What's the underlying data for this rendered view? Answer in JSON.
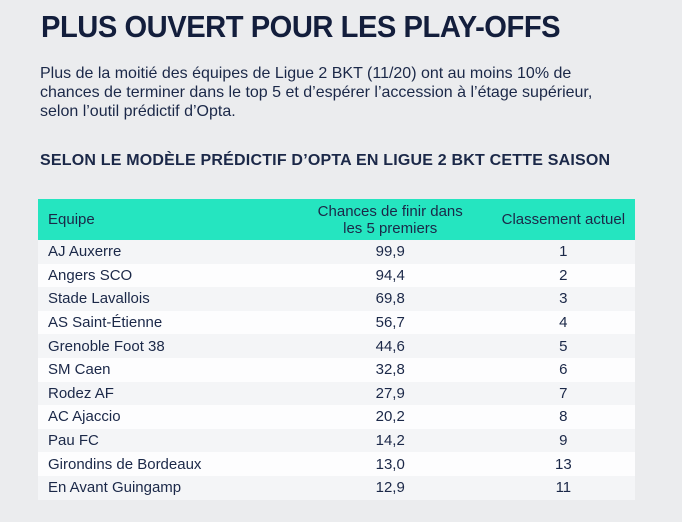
{
  "page": {
    "title": "PLUS OUVERT POUR LES PLAY-OFFS",
    "intro_lines": [
      "Plus de la moitié des équipes de Ligue 2 BKT (11/20) ont au moins 10% de",
      "chances de terminer dans le top 5 et d’espérer l’accession à l’étage supérieur,",
      "selon l’outil prédictif d’Opta."
    ],
    "subtitle": "SELON LE MODÈLE PRÉDICTIF D’OPTA EN LIGUE 2 BKT CETTE SAISON"
  },
  "colors": {
    "background": "#ebecee",
    "navy_text": "#1b2848",
    "title_navy": "#131e3c",
    "header_teal": "#25e5c0",
    "row_odd": "#f4f5f7",
    "row_even": "#fdfdfe"
  },
  "chart_data": {
    "type": "table",
    "title": "SELON LE MODÈLE PRÉDICTIF D’OPTA EN LIGUE 2 BKT CETTE SAISON",
    "columns": [
      "Equipe",
      "Chances de finir dans les 5 premiers",
      "Classement actuel"
    ],
    "column_headers": {
      "team": "Equipe",
      "chance_line1": "Chances de finir dans",
      "chance_line2": "les 5 premiers",
      "rank": "Classement actuel"
    },
    "rows": [
      {
        "team": "AJ Auxerre",
        "chance": "99,9",
        "rank": "1"
      },
      {
        "team": "Angers SCO",
        "chance": "94,4",
        "rank": "2"
      },
      {
        "team": "Stade Lavallois",
        "chance": "69,8",
        "rank": "3"
      },
      {
        "team": "AS Saint-Étienne",
        "chance": "56,7",
        "rank": "4"
      },
      {
        "team": "Grenoble Foot 38",
        "chance": "44,6",
        "rank": "5"
      },
      {
        "team": "SM Caen",
        "chance": "32,8",
        "rank": "6"
      },
      {
        "team": "Rodez AF",
        "chance": "27,9",
        "rank": "7"
      },
      {
        "team": "AC Ajaccio",
        "chance": "20,2",
        "rank": "8"
      },
      {
        "team": "Pau FC",
        "chance": "14,2",
        "rank": "9"
      },
      {
        "team": "Girondins de Bordeaux",
        "chance": "13,0",
        "rank": "13"
      },
      {
        "team": "En Avant Guingamp",
        "chance": "12,9",
        "rank": "11"
      }
    ]
  }
}
